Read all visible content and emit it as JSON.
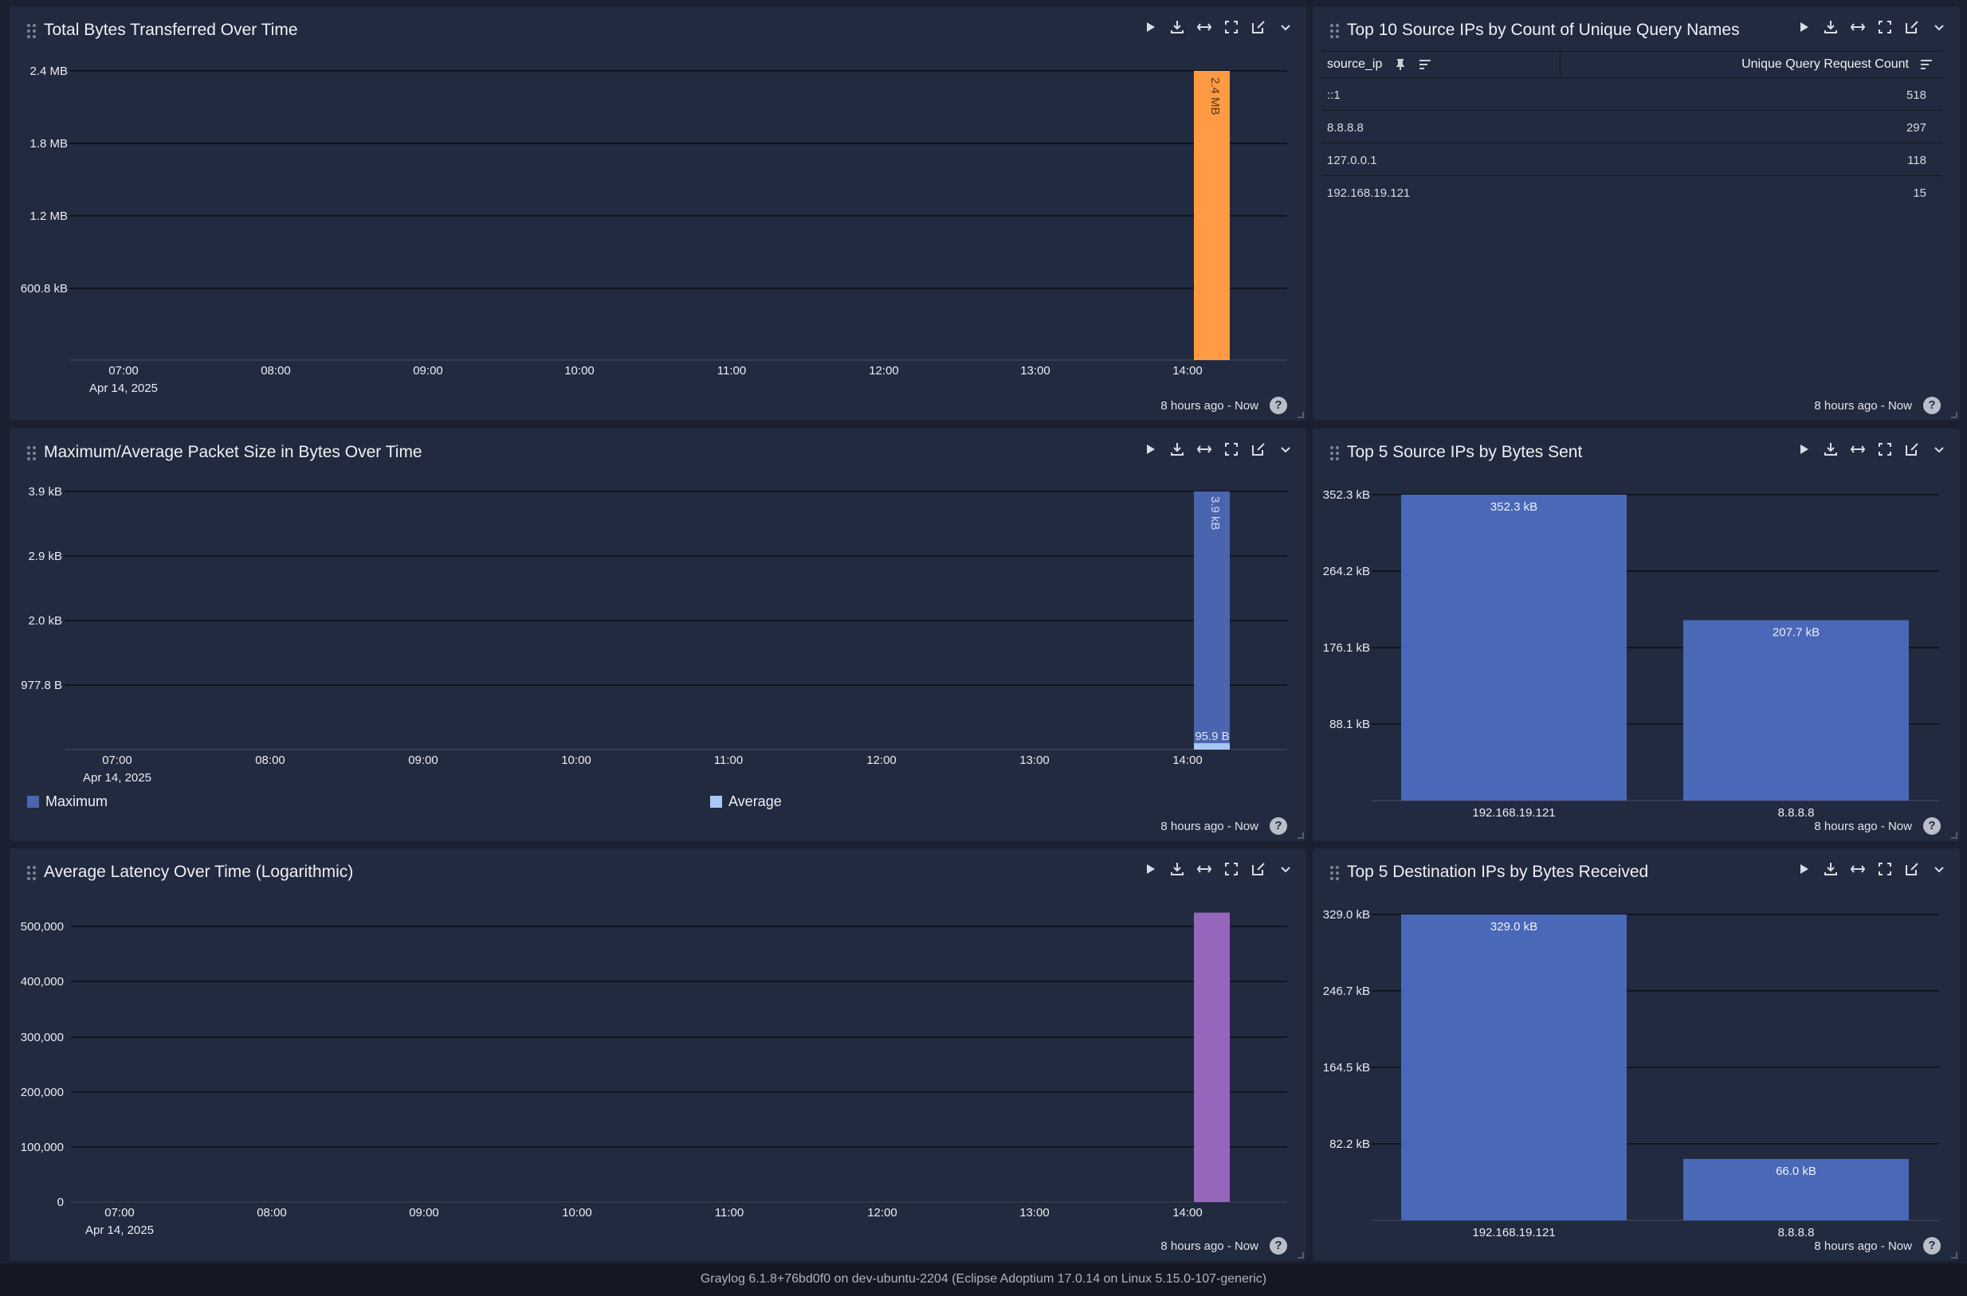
{
  "common": {
    "range_label": "8 hours ago - Now",
    "help_label": "?"
  },
  "panels": {
    "bytes": {
      "title": "Total Bytes Transferred Over Time",
      "y_ticks": [
        "2.4 MB",
        "1.8 MB",
        "1.2 MB",
        "600.8 kB"
      ],
      "x_ticks": [
        "07:00",
        "08:00",
        "09:00",
        "10:00",
        "11:00",
        "12:00",
        "13:00",
        "14:00"
      ],
      "date_label": "Apr 14, 2025"
    },
    "topsrc": {
      "title": "Top 10 Source IPs by Count of Unique Query Names",
      "col1": "source_ip",
      "col2": "Unique Query Request Count",
      "rows": [
        {
          "ip": "::1",
          "count": "518"
        },
        {
          "ip": "8.8.8.8",
          "count": "297"
        },
        {
          "ip": "127.0.0.1",
          "count": "118"
        },
        {
          "ip": "192.168.19.121",
          "count": "15"
        }
      ]
    },
    "packet": {
      "title": "Maximum/Average Packet Size in Bytes Over Time",
      "y_ticks": [
        "3.9 kB",
        "2.9 kB",
        "2.0 kB",
        "977.8 B"
      ],
      "x_ticks": [
        "07:00",
        "08:00",
        "09:00",
        "10:00",
        "11:00",
        "12:00",
        "13:00",
        "14:00"
      ],
      "date_label": "Apr 14, 2025",
      "legend": [
        "Maximum",
        "Average"
      ]
    },
    "bytessent": {
      "title": "Top 5 Source IPs by Bytes Sent",
      "y_ticks": [
        "352.3 kB",
        "264.2 kB",
        "176.1 kB",
        "88.1 kB"
      ]
    },
    "latency": {
      "title": "Average Latency Over Time (Logarithmic)",
      "y_ticks": [
        "500,000",
        "400,000",
        "300,000",
        "200,000",
        "100,000",
        "0"
      ],
      "x_ticks": [
        "07:00",
        "08:00",
        "09:00",
        "10:00",
        "11:00",
        "12:00",
        "13:00",
        "14:00"
      ],
      "date_label": "Apr 14, 2025"
    },
    "bytesrecv": {
      "title": "Top 5 Destination IPs by Bytes Received",
      "y_ticks": [
        "329.0 kB",
        "246.7 kB",
        "164.5 kB",
        "82.2 kB"
      ]
    }
  },
  "chart_data": [
    {
      "type": "bar",
      "x": [
        "14:00"
      ],
      "values": [
        2400000
      ],
      "labels": [
        "2.4 MB"
      ],
      "ylim": [
        0,
        2400000
      ],
      "color": "#ff9b45"
    },
    {
      "type": "bar",
      "x": [
        "14:00"
      ],
      "series": [
        {
          "name": "Maximum",
          "values": [
            3900
          ],
          "labels": [
            "3.9 kB"
          ],
          "color": "#4a64b0"
        },
        {
          "name": "Average",
          "values": [
            95.9
          ],
          "labels": [
            "95.9 B"
          ],
          "color": "#a7c8f5"
        }
      ],
      "ylim": [
        0,
        3900
      ]
    },
    {
      "type": "bar",
      "categories": [
        "192.168.19.121",
        "8.8.8.8"
      ],
      "values": [
        352.3,
        207.7
      ],
      "labels": [
        "352.3 kB",
        "207.7 kB"
      ],
      "ylim": [
        0,
        352.3
      ],
      "color": "#4a68b8"
    },
    {
      "type": "bar",
      "x": [
        "14:00"
      ],
      "values": [
        525000
      ],
      "ylim": [
        0,
        500000
      ],
      "color": "#9467bd"
    },
    {
      "type": "bar",
      "categories": [
        "192.168.19.121",
        "8.8.8.8"
      ],
      "values": [
        329.0,
        66.0
      ],
      "labels": [
        "329.0 kB",
        "66.0 kB"
      ],
      "ylim": [
        0,
        329.0
      ],
      "color": "#4a68b8"
    }
  ],
  "status_bar": "Graylog 6.1.8+76bd0f0 on dev-ubuntu-2204 (Eclipse Adoptium 17.0.14 on Linux 5.15.0-107-generic)"
}
